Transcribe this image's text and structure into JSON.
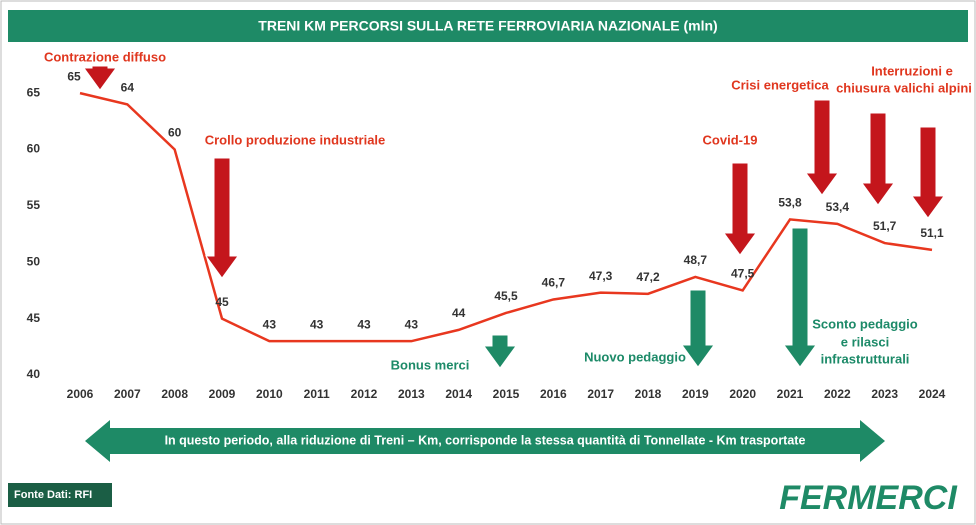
{
  "chart_data": {
    "type": "line",
    "title": "TRENI KM PERCORSI SULLA RETE FERROVIARIA NAZIONALE (mln)",
    "categories": [
      "2006",
      "2007",
      "2008",
      "2009",
      "2010",
      "2011",
      "2012",
      "2013",
      "2014",
      "2015",
      "2016",
      "2017",
      "2018",
      "2019",
      "2020",
      "2021",
      "2022",
      "2023",
      "2024"
    ],
    "values": [
      65,
      64,
      60,
      45,
      43,
      43,
      43,
      43,
      44,
      45.5,
      46.7,
      47.3,
      47.2,
      48.7,
      47.5,
      53.8,
      53.4,
      51.7,
      51.1
    ],
    "value_labels": [
      "65",
      "64",
      "60",
      "45",
      "43",
      "43",
      "43",
      "43",
      "44",
      "45,5",
      "46,7",
      "47,3",
      "47,2",
      "48,7",
      "47,5",
      "53,8",
      "53,4",
      "51,7",
      "51,1"
    ],
    "color": "#e8371f",
    "ylim": [
      40,
      69
    ],
    "yticks": [
      40,
      45,
      50,
      55,
      60,
      65
    ],
    "grid": false,
    "annotations": [
      "Contrazione diffuso",
      "Crollo produzione industriale",
      "Covid-19",
      "Crisi energetica",
      "Interruzioni e",
      "chiusura  valichi alpini",
      "Bonus merci",
      "Nuovo pedaggio",
      "Sconto pedaggio",
      "e rilasci",
      "infrastrutturali"
    ],
    "banner": "In questo periodo, alla riduzione di Treni – Km, corrisponde la stessa quantità di Tonnellate - Km trasportate"
  },
  "footer": {
    "source": "Fonte Dati: RFI",
    "logo": "FERMERCI"
  }
}
